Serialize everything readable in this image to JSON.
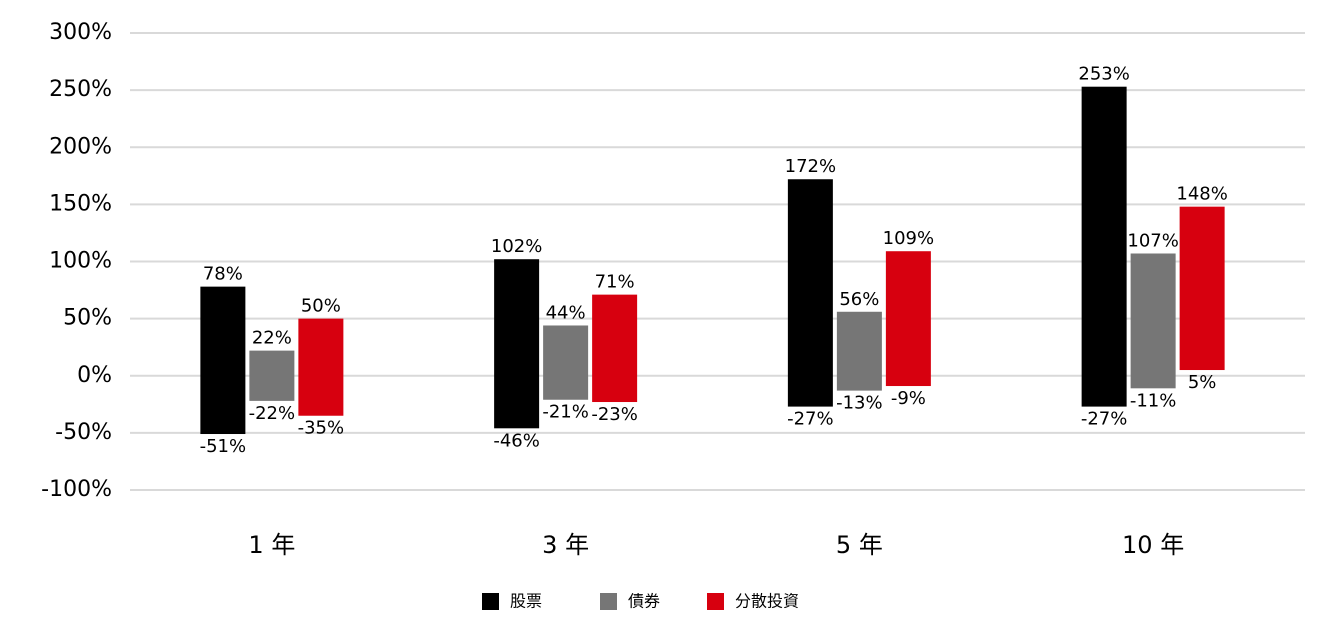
{
  "chart_data": {
    "type": "floating-bar",
    "categories": [
      "1 年",
      "3 年",
      "5 年",
      "10 年"
    ],
    "series": [
      {
        "name": "股票",
        "color": "#000000",
        "values": [
          [
            -51,
            78
          ],
          [
            -46,
            102
          ],
          [
            -27,
            172
          ],
          [
            -27,
            253
          ]
        ],
        "value_labels": [
          [
            "-51%",
            "78%"
          ],
          [
            "-46%",
            "102%"
          ],
          [
            "-27%",
            "172%"
          ],
          [
            "-27%",
            "253%"
          ]
        ]
      },
      {
        "name": "債券",
        "color": "#767676",
        "values": [
          [
            -22,
            22
          ],
          [
            -21,
            44
          ],
          [
            -13,
            56
          ],
          [
            -11,
            107
          ]
        ],
        "value_labels": [
          [
            "-22%",
            "22%"
          ],
          [
            "-21%",
            "44%"
          ],
          [
            "-13%",
            "56%"
          ],
          [
            "-11%",
            "107%"
          ]
        ]
      },
      {
        "name": "分散投資",
        "color": "#d7000f",
        "values": [
          [
            -35,
            50
          ],
          [
            -23,
            71
          ],
          [
            -9,
            109
          ],
          [
            5,
            148
          ]
        ],
        "value_labels": [
          [
            "-35%",
            "50%"
          ],
          [
            "-23%",
            "71%"
          ],
          [
            "-9%",
            "109%"
          ],
          [
            "5%",
            "148%"
          ]
        ]
      }
    ],
    "ylim": [
      -100,
      300
    ],
    "yticks": [
      {
        "value": -100,
        "label": "-100%"
      },
      {
        "value": -50,
        "label": "-50%"
      },
      {
        "value": 0,
        "label": "0%"
      },
      {
        "value": 50,
        "label": "50%"
      },
      {
        "value": 100,
        "label": "100%"
      },
      {
        "value": 150,
        "label": "150%"
      },
      {
        "value": 200,
        "label": "200%"
      },
      {
        "value": 250,
        "label": "250%"
      },
      {
        "value": 300,
        "label": "300%"
      }
    ],
    "grid": true,
    "legend": "bottom"
  }
}
